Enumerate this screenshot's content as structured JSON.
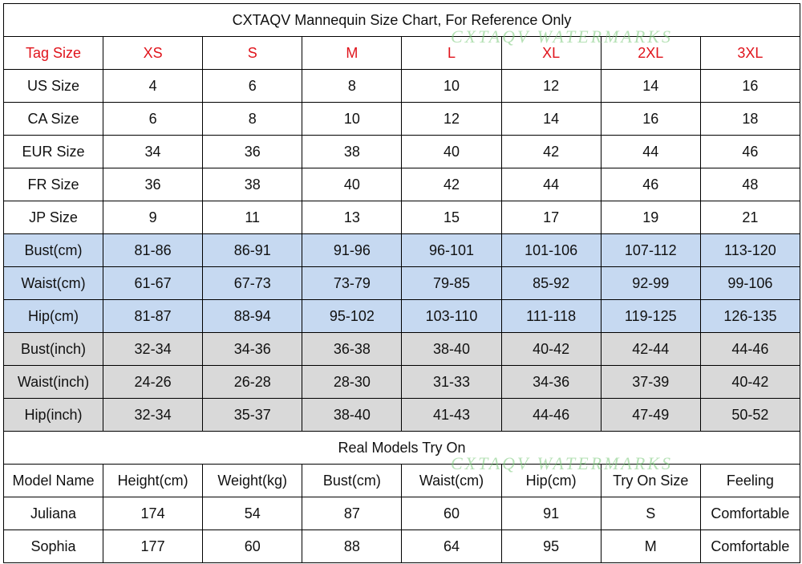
{
  "header": {
    "title": "CXTAQV Mannequin Size Chart, For Reference Only"
  },
  "watermark": "CXTAQV WATERMARKS",
  "size_table": {
    "header": [
      "Tag Size",
      "XS",
      "S",
      "M",
      "L",
      "XL",
      "2XL",
      "3XL"
    ],
    "rows": [
      [
        "US Size",
        4,
        6,
        8,
        10,
        12,
        14,
        16
      ],
      [
        "CA Size",
        6,
        8,
        10,
        12,
        14,
        16,
        18
      ],
      [
        "EUR Size",
        34,
        36,
        38,
        40,
        42,
        44,
        46
      ],
      [
        "FR Size",
        36,
        38,
        40,
        42,
        44,
        46,
        48
      ],
      [
        "JP Size",
        9,
        11,
        13,
        15,
        17,
        19,
        21
      ],
      [
        "Bust(cm)",
        "81-86",
        "86-91",
        "91-96",
        "96-101",
        "101-106",
        "107-112",
        "113-120"
      ],
      [
        "Waist(cm)",
        "61-67",
        "67-73",
        "73-79",
        "79-85",
        "85-92",
        "92-99",
        "99-106"
      ],
      [
        "Hip(cm)",
        "81-87",
        "88-94",
        "95-102",
        "103-110",
        "111-118",
        "119-125",
        "126-135"
      ],
      [
        "Bust(inch)",
        "32-34",
        "34-36",
        "36-38",
        "38-40",
        "40-42",
        "42-44",
        "44-46"
      ],
      [
        "Waist(inch)",
        "24-26",
        "26-28",
        "28-30",
        "31-33",
        "34-36",
        "37-39",
        "40-42"
      ],
      [
        "Hip(inch)",
        "32-34",
        "35-37",
        "38-40",
        "41-43",
        "44-46",
        "47-49",
        "50-52"
      ]
    ]
  },
  "models_table": {
    "title": "Real Models Try On",
    "header": [
      "Model Name",
      "Height(cm)",
      "Weight(kg)",
      "Bust(cm)",
      "Waist(cm)",
      "Hip(cm)",
      "Try On Size",
      "Feeling"
    ],
    "rows": [
      [
        "Juliana",
        174,
        54,
        87,
        60,
        91,
        "S",
        "Comfortable"
      ],
      [
        "Sophia",
        177,
        60,
        88,
        64,
        95,
        "M",
        "Comfortable"
      ]
    ]
  }
}
